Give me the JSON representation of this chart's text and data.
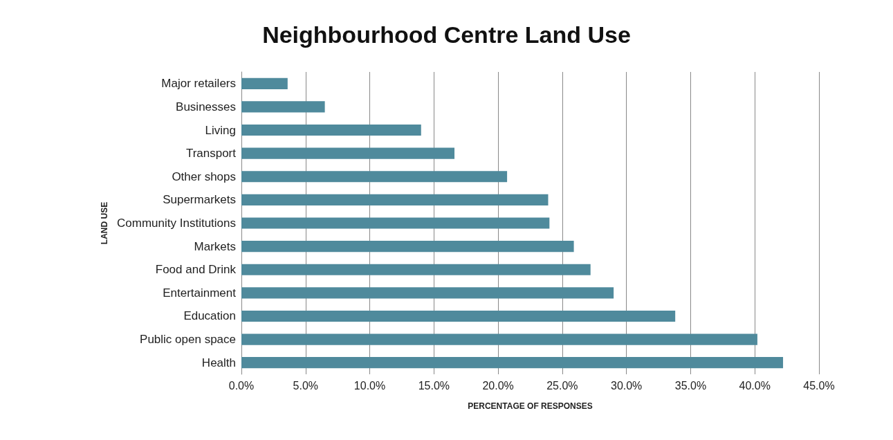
{
  "chart_data": {
    "type": "bar",
    "orientation": "horizontal",
    "title": "Neighbourhood Centre Land Use",
    "xlabel": "PERCENTAGE OF RESPONSES",
    "ylabel": "LAND USE",
    "categories": [
      "Major retailers",
      "Businesses",
      "Living",
      "Transport",
      "Other shops",
      "Supermarkets",
      "Community Institutions",
      "Markets",
      "Food and Drink",
      "Entertainment",
      "Education",
      "Public open space",
      "Health"
    ],
    "values": [
      3.6,
      6.5,
      14.0,
      16.6,
      20.7,
      23.9,
      24.0,
      25.9,
      27.2,
      29.0,
      33.8,
      40.2,
      42.2
    ],
    "color": "#4f8a9c",
    "xlim": [
      0,
      45
    ],
    "xticks": [
      {
        "value": 0,
        "label": "0.0%"
      },
      {
        "value": 5,
        "label": "5.0%"
      },
      {
        "value": 10,
        "label": "10.0%"
      },
      {
        "value": 15,
        "label": "15.0%"
      },
      {
        "value": 20,
        "label": "20.0%"
      },
      {
        "value": 25,
        "label": "25.0%"
      },
      {
        "value": 30,
        "label": "30.0%"
      },
      {
        "value": 35,
        "label": "35.0%"
      },
      {
        "value": 40,
        "label": "40.0%"
      },
      {
        "value": 45,
        "label": "45.0%"
      }
    ],
    "grid": "x"
  }
}
